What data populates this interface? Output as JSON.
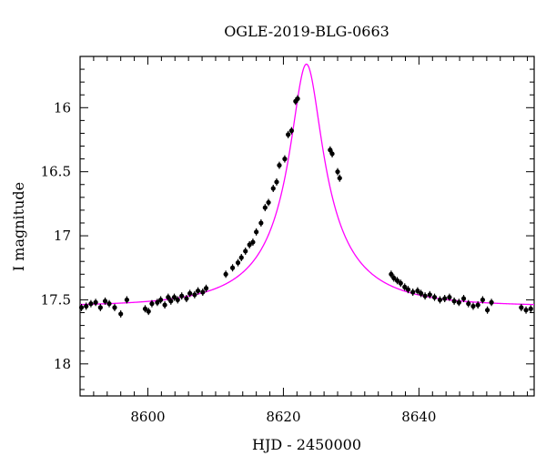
{
  "chart_data": {
    "type": "scatter",
    "title": "OGLE-2019-BLG-0663",
    "xlabel": "HJD - 2450000",
    "ylabel": "I magnitude",
    "xlim": [
      8590,
      8657
    ],
    "ylim": [
      18.25,
      15.6
    ],
    "y_inverted": true,
    "grid": false,
    "x_ticks": [
      8600,
      8620,
      8640
    ],
    "x_tick_labels": [
      "8600",
      "8620",
      "8640"
    ],
    "y_ticks": [
      16,
      16.5,
      17,
      17.5,
      18
    ],
    "y_tick_labels": [
      "16",
      "16.5",
      "17",
      "17.5",
      "18"
    ],
    "colors": {
      "points": "#000000",
      "model": "#ff00ff"
    },
    "model": {
      "description_label": "",
      "t0": 8623.4,
      "peak_mag": 15.66,
      "baseline_mag": 17.55,
      "u0": 0.17,
      "tE": 14.0
    },
    "series": [
      {
        "x": [
          8590.2,
          8590.9,
          8591.6,
          8592.3,
          8593.0,
          8593.7,
          8594.3,
          8595.1,
          8596.0,
          8596.9,
          8599.6,
          8600.1,
          8600.6,
          8601.4,
          8601.9,
          8602.5,
          8603.0,
          8603.4,
          8603.9,
          8604.4,
          8605.0,
          8605.7,
          8606.2,
          8606.9,
          8607.4,
          8608.1,
          8608.6,
          8611.5,
          8612.5,
          8613.3,
          8613.8,
          8614.4,
          8615.0,
          8615.5,
          8616.0,
          8616.7,
          8617.3,
          8617.8,
          8618.5,
          8619.0,
          8619.4,
          8620.2,
          8620.7,
          8621.2,
          8621.8,
          8622.1,
          8626.9,
          8627.2,
          8628.0,
          8628.3,
          8635.9,
          8636.3,
          8636.8,
          8637.3,
          8637.9,
          8638.4,
          8639.1,
          8639.8,
          8640.3,
          8640.9,
          8641.6,
          8642.3,
          8643.1,
          8643.8,
          8644.5,
          8645.2,
          8645.9,
          8646.6,
          8647.3,
          8648.0,
          8648.7,
          8649.4,
          8650.1,
          8650.7,
          8655.1,
          8655.8,
          8656.5
        ],
        "y": [
          17.56,
          17.55,
          17.53,
          17.52,
          17.56,
          17.51,
          17.53,
          17.56,
          17.61,
          17.5,
          17.57,
          17.59,
          17.53,
          17.52,
          17.5,
          17.54,
          17.48,
          17.51,
          17.48,
          17.5,
          17.47,
          17.49,
          17.45,
          17.46,
          17.43,
          17.44,
          17.41,
          17.3,
          17.25,
          17.21,
          17.17,
          17.12,
          17.07,
          17.05,
          16.97,
          16.9,
          16.78,
          16.74,
          16.63,
          16.58,
          16.45,
          16.4,
          16.21,
          16.18,
          15.95,
          15.93,
          16.33,
          16.36,
          16.5,
          16.55,
          17.3,
          17.33,
          17.35,
          17.37,
          17.4,
          17.42,
          17.44,
          17.43,
          17.45,
          17.47,
          17.46,
          17.48,
          17.5,
          17.49,
          17.48,
          17.51,
          17.52,
          17.49,
          17.53,
          17.55,
          17.54,
          17.5,
          17.58,
          17.52,
          17.56,
          17.58,
          17.57
        ]
      }
    ]
  }
}
